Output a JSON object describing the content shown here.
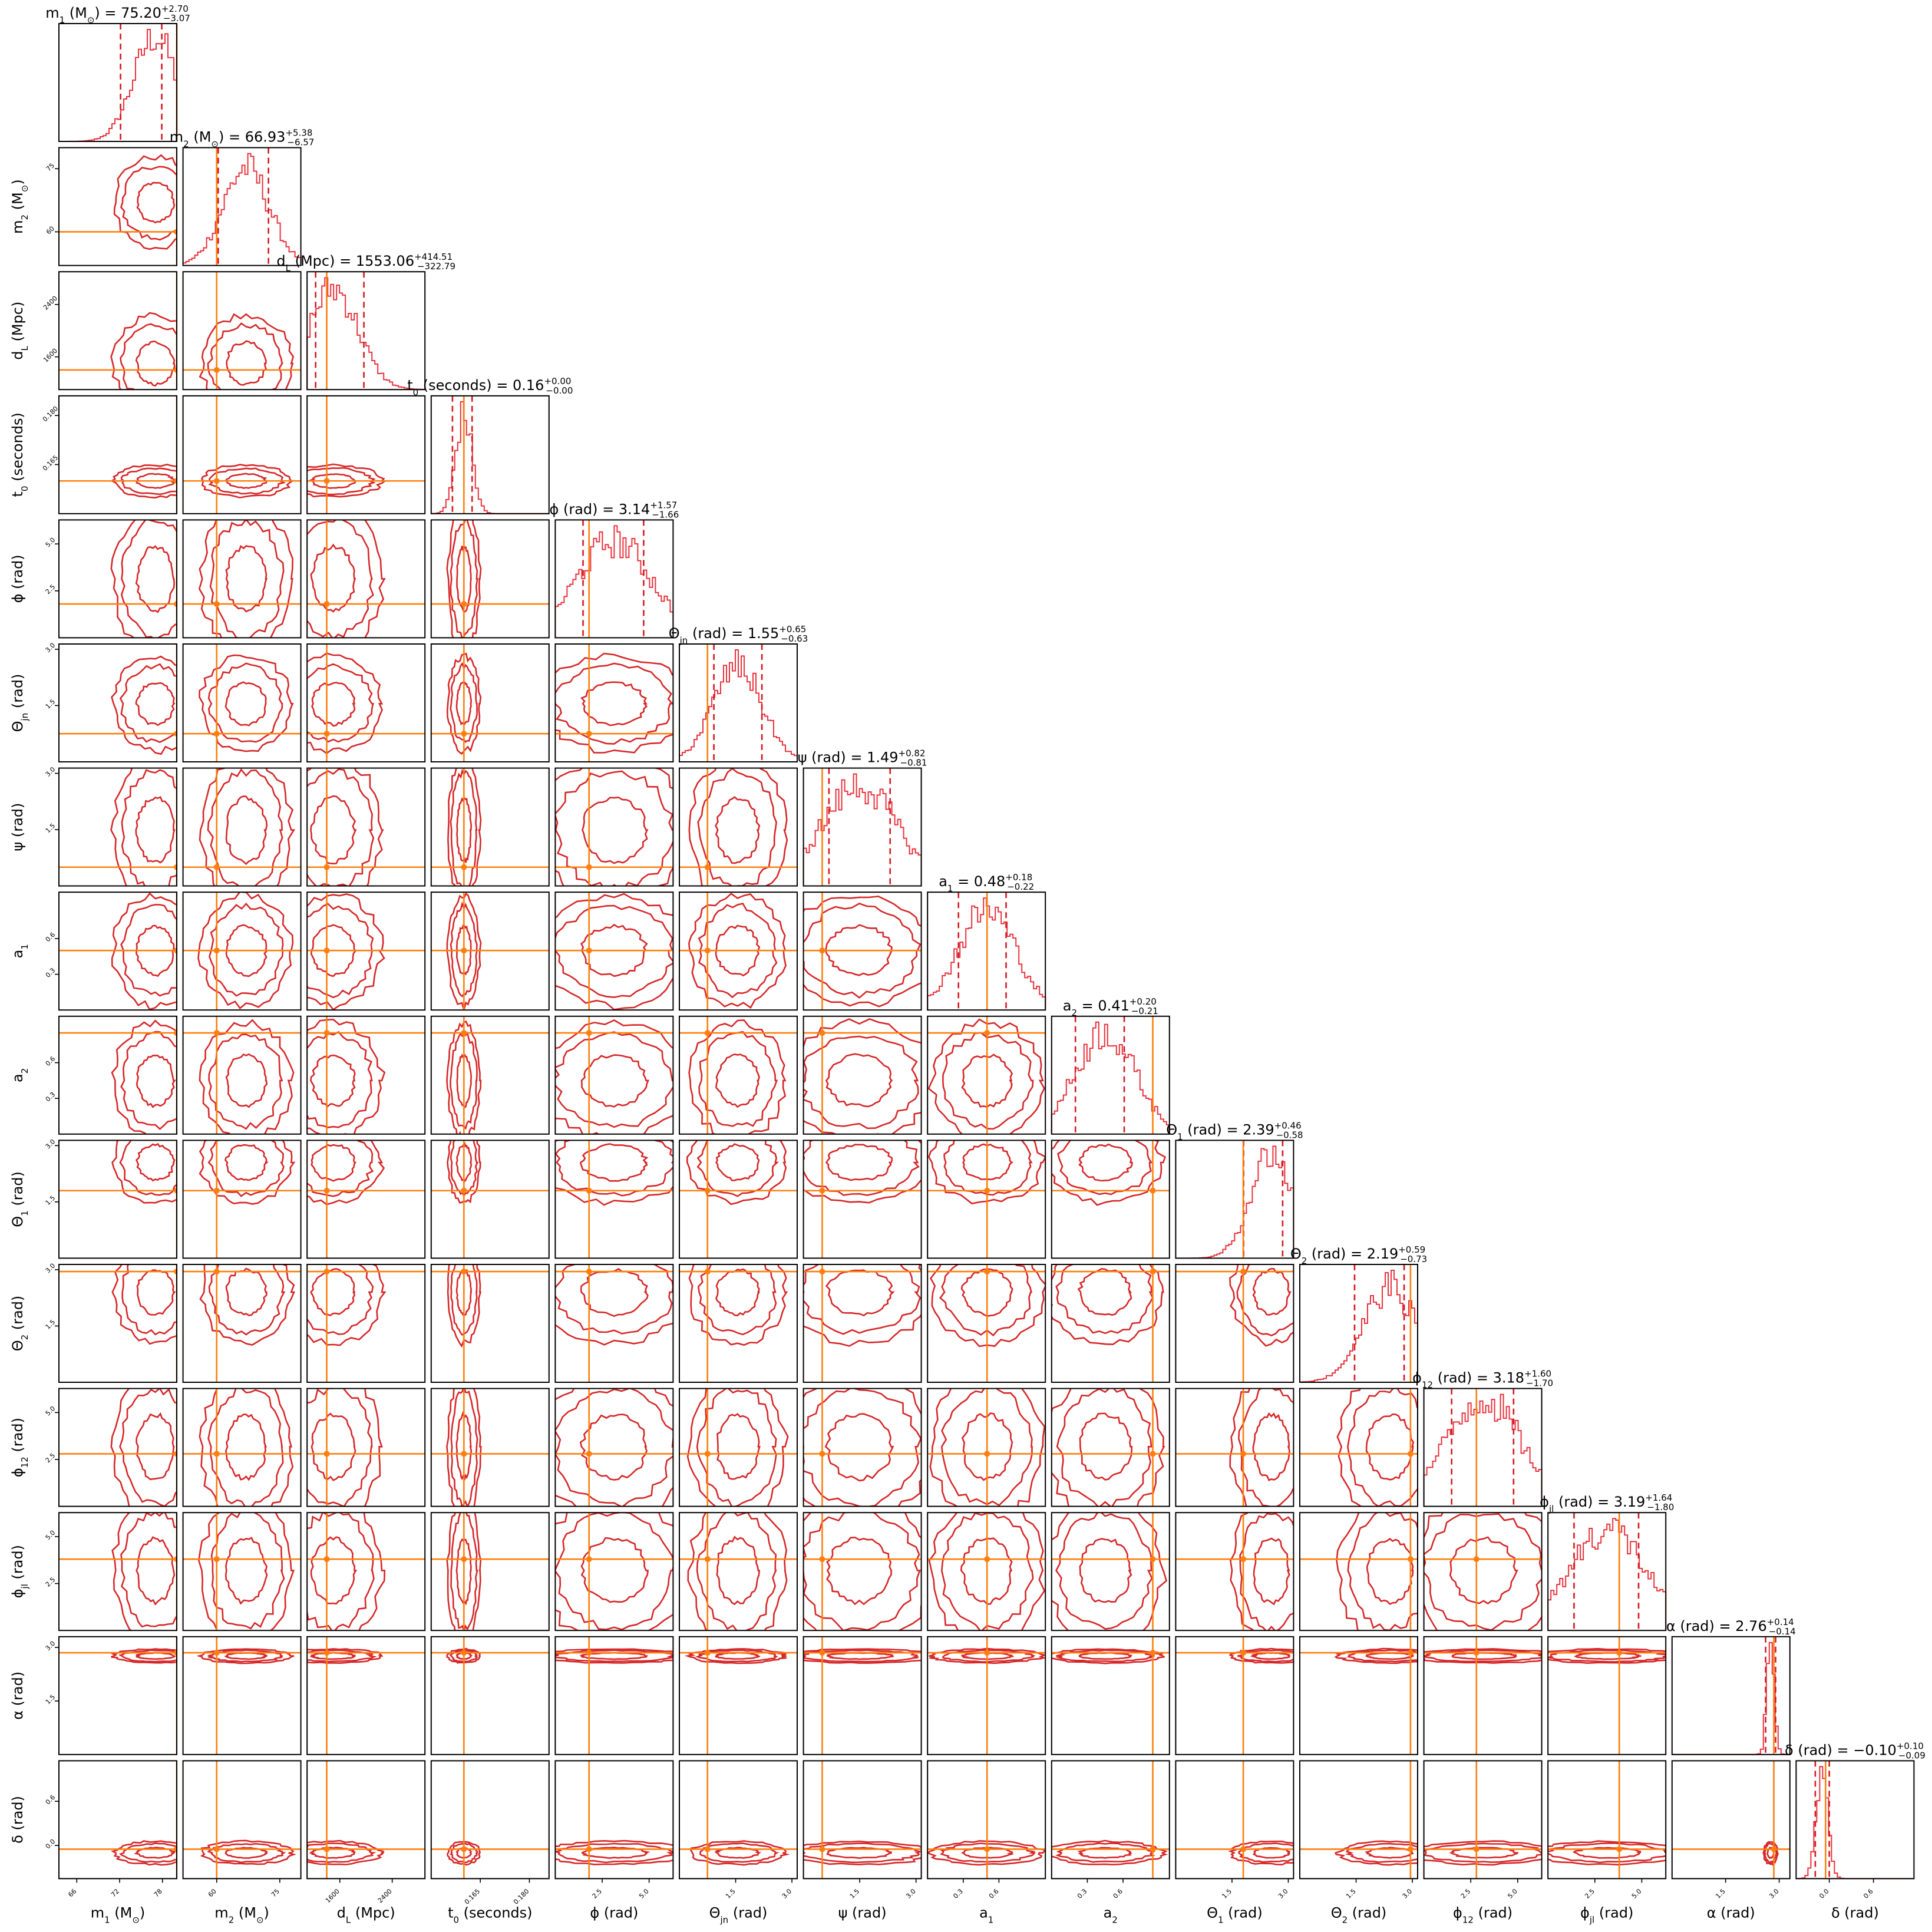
{
  "chart_data": {
    "type": "corner",
    "grid": false,
    "colors": {
      "posterior": "#d62728",
      "quantile": "#d41820",
      "truth": "#ff7f0e",
      "frame": "#000000"
    },
    "parameters": [
      {
        "key": "m1",
        "label": "m_1 (M_⊙)",
        "title_name": "m_1 (M_⊙)",
        "title_value": "75.20",
        "err_plus": "+2.70",
        "err_minus": "−3.07",
        "range": [
          63.5,
          80
        ],
        "ticks": [
          66,
          72,
          78
        ],
        "tick_labels": [
          "66",
          "72",
          "78"
        ],
        "truth": 80.0,
        "hist_center": 77.0,
        "hist_sigma": 3.0,
        "q_low": 72.13,
        "q_high": 77.9
      },
      {
        "key": "m2",
        "label": "m_2 (M_⊙)",
        "title_name": "m_2 (M_⊙)",
        "title_value": "66.93",
        "err_plus": "+5.38",
        "err_minus": "−6.57",
        "range": [
          52,
          80
        ],
        "ticks": [
          60,
          75
        ],
        "tick_labels": [
          "60",
          "75"
        ],
        "truth": 60.0,
        "hist_center": 67.0,
        "hist_sigma": 5.5,
        "q_low": 60.36,
        "q_high": 72.31
      },
      {
        "key": "dL",
        "label": "d_L (Mpc)",
        "title_name": "d_L (Mpc)",
        "title_value": "1553.06",
        "err_plus": "+414.51",
        "err_minus": "−322.79",
        "range": [
          1100,
          2900
        ],
        "ticks": [
          1600,
          2400
        ],
        "tick_labels": [
          "1600",
          "2400"
        ],
        "truth": 1400.0,
        "hist_center": 1500.0,
        "hist_sigma": 380,
        "q_low": 1230.27,
        "q_high": 1967.57
      },
      {
        "key": "t0",
        "label": "t_0 (seconds)",
        "title_name": "t_0 (seconds)",
        "title_value": "0.16",
        "err_plus": "+0.00",
        "err_minus": "−0.00",
        "range": [
          0.15,
          0.186
        ],
        "ticks": [
          0.165,
          0.18
        ],
        "tick_labels": [
          "0.165",
          "0.180"
        ],
        "truth": 0.16,
        "hist_center": 0.16,
        "hist_sigma": 0.0025,
        "q_low": 0.1565,
        "q_high": 0.1625
      },
      {
        "key": "phi",
        "label": "ϕ (rad)",
        "title_name": "ϕ (rad)",
        "title_value": "3.14",
        "err_plus": "+1.57",
        "err_minus": "−1.66",
        "range": [
          0,
          6.28
        ],
        "ticks": [
          2.5,
          5.0
        ],
        "tick_labels": [
          "2.5",
          "5.0"
        ],
        "truth": 1.8,
        "hist_center": 3.14,
        "hist_sigma": 2.0,
        "q_low": 1.48,
        "q_high": 4.71
      },
      {
        "key": "theta_jn",
        "label": "Θ_jn (rad)",
        "title_name": "Θ_jn (rad)",
        "title_value": "1.55",
        "err_plus": "+0.65",
        "err_minus": "−0.63",
        "range": [
          0,
          3.14
        ],
        "ticks": [
          1.5,
          3.0
        ],
        "tick_labels": [
          "1.5",
          "3.0"
        ],
        "truth": 0.75,
        "hist_center": 1.55,
        "hist_sigma": 0.65,
        "q_low": 0.92,
        "q_high": 2.2
      },
      {
        "key": "psi",
        "label": "ψ (rad)",
        "title_name": "ψ (rad)",
        "title_value": "1.49",
        "err_plus": "+0.82",
        "err_minus": "−0.81",
        "range": [
          0,
          3.14
        ],
        "ticks": [
          1.5,
          3.0
        ],
        "tick_labels": [
          "1.5",
          "3.0"
        ],
        "truth": 0.5,
        "hist_center": 1.49,
        "hist_sigma": 1.0,
        "q_low": 0.68,
        "q_high": 2.31
      },
      {
        "key": "a1",
        "label": "a_1",
        "title_name": "a_1",
        "title_value": "0.48",
        "err_plus": "+0.18",
        "err_minus": "−0.22",
        "range": [
          0,
          0.99
        ],
        "ticks": [
          0.3,
          0.6
        ],
        "tick_labels": [
          "0.3",
          "0.6"
        ],
        "truth": 0.5,
        "hist_center": 0.5,
        "hist_sigma": 0.24,
        "q_low": 0.26,
        "q_high": 0.66
      },
      {
        "key": "a2",
        "label": "a_2",
        "title_name": "a_2",
        "title_value": "0.41",
        "err_plus": "+0.20",
        "err_minus": "−0.21",
        "range": [
          0,
          0.99
        ],
        "ticks": [
          0.3,
          0.6
        ],
        "tick_labels": [
          "0.3",
          "0.6"
        ],
        "truth": 0.85,
        "hist_center": 0.45,
        "hist_sigma": 0.25,
        "q_low": 0.2,
        "q_high": 0.61
      },
      {
        "key": "theta1",
        "label": "Θ_1 (rad)",
        "title_name": "Θ_1 (rad)",
        "title_value": "2.39",
        "err_plus": "+0.46",
        "err_minus": "−0.58",
        "range": [
          0,
          3.14
        ],
        "ticks": [
          1.5,
          3.0
        ],
        "tick_labels": [
          "1.5",
          "3.0"
        ],
        "truth": 1.8,
        "hist_center": 2.55,
        "hist_sigma": 0.55,
        "q_low": 1.81,
        "q_high": 2.85
      },
      {
        "key": "theta2",
        "label": "Θ_2 (rad)",
        "title_name": "Θ_2 (rad)",
        "title_value": "2.19",
        "err_plus": "+0.59",
        "err_minus": "−0.73",
        "range": [
          0,
          3.14
        ],
        "ticks": [
          1.5,
          3.0
        ],
        "tick_labels": [
          "1.5",
          "3.0"
        ],
        "truth": 2.95,
        "hist_center": 2.4,
        "hist_sigma": 0.7,
        "q_low": 1.46,
        "q_high": 2.78
      },
      {
        "key": "phi12",
        "label": "ϕ_12 (rad)",
        "title_name": "ϕ_12 (rad)",
        "title_value": "3.18",
        "err_plus": "+1.60",
        "err_minus": "−1.70",
        "range": [
          0,
          6.28
        ],
        "ticks": [
          2.5,
          5.0
        ],
        "tick_labels": [
          "2.5",
          "5.0"
        ],
        "truth": 2.8,
        "hist_center": 3.18,
        "hist_sigma": 2.0,
        "q_low": 1.48,
        "q_high": 4.78
      },
      {
        "key": "phijl",
        "label": "ϕ_jl (rad)",
        "title_name": "ϕ_jl (rad)",
        "title_value": "3.19",
        "err_plus": "+1.64",
        "err_minus": "−1.80",
        "range": [
          0,
          6.28
        ],
        "ticks": [
          2.5,
          5.0
        ],
        "tick_labels": [
          "2.5",
          "5.0"
        ],
        "truth": 3.8,
        "hist_center": 3.19,
        "hist_sigma": 2.0,
        "q_low": 1.39,
        "q_high": 4.83
      },
      {
        "key": "alpha",
        "label": "α (rad)",
        "title_name": "α (rad)",
        "title_value": "2.76",
        "err_plus": "+0.14",
        "err_minus": "−0.14",
        "range": [
          0,
          3.3
        ],
        "ticks": [
          1.5,
          3.0
        ],
        "tick_labels": [
          "1.5",
          "3.0"
        ],
        "truth": 2.85,
        "hist_center": 2.76,
        "hist_sigma": 0.1,
        "q_low": 2.62,
        "q_high": 2.9
      },
      {
        "key": "delta",
        "label": "δ (rad)",
        "title_name": "δ (rad)",
        "title_value": "−0.10",
        "err_plus": "+0.10",
        "err_minus": "−0.09",
        "range": [
          -0.45,
          1.15
        ],
        "ticks": [
          0.0,
          0.6
        ],
        "tick_labels": [
          "0.0",
          "0.6"
        ],
        "truth": -0.05,
        "hist_center": -0.1,
        "hist_sigma": 0.08,
        "q_low": -0.19,
        "q_high": 0.0
      }
    ]
  }
}
